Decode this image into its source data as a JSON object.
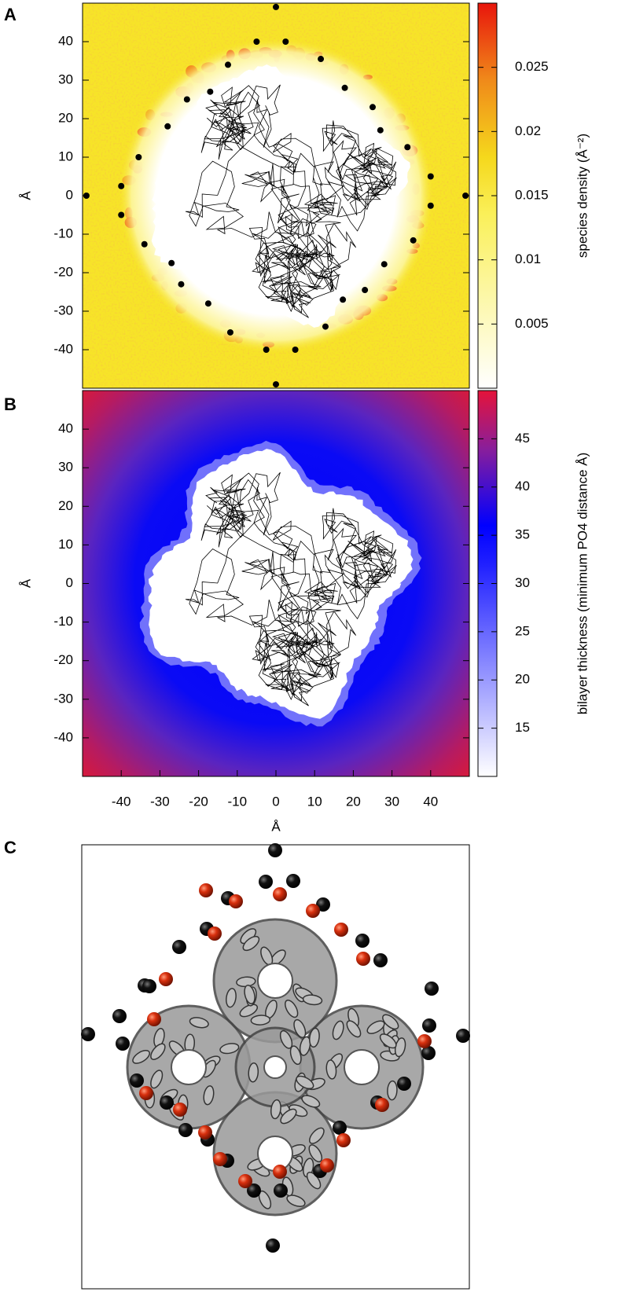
{
  "panel_labels": [
    "A",
    "B",
    "C"
  ],
  "chart_data": [
    {
      "type": "heatmap",
      "y_label": "Å",
      "xlim": [
        -50,
        50
      ],
      "ylim": [
        -50,
        50
      ],
      "yticks": [
        -40,
        -30,
        -20,
        -10,
        0,
        10,
        20,
        30,
        40
      ],
      "colorbar": {
        "label": "species density (Å⁻²)",
        "lim": [
          0,
          0.03
        ],
        "ticks": [
          0.005,
          0.01,
          0.015,
          0.02,
          0.025
        ]
      },
      "points": {
        "color": "#000000",
        "x": [
          0,
          -5,
          2.5,
          11.6,
          -12.4,
          17.8,
          -17,
          -23,
          25,
          -28,
          27,
          -35.5,
          34,
          40,
          -40,
          -49,
          49,
          40,
          -40,
          -34,
          35.5,
          -27,
          28,
          23,
          -24.5,
          -17.5,
          17.3,
          -11.8,
          12.8,
          -2.5,
          5,
          0
        ],
        "y": [
          49,
          40,
          40,
          35.5,
          34,
          28,
          27,
          25,
          23,
          18,
          17,
          10,
          12.6,
          5,
          2.5,
          0,
          0,
          -2.6,
          -5,
          -12.6,
          -11.6,
          -17.5,
          -17.8,
          -24.5,
          -23,
          -28,
          -27,
          -35.5,
          -34,
          -40,
          -40,
          -49
        ]
      }
    },
    {
      "type": "heatmap",
      "x_label": "Å",
      "y_label": "Å",
      "xlim": [
        -50,
        50
      ],
      "ylim": [
        -50,
        50
      ],
      "xticks": [
        -40,
        -30,
        -20,
        -10,
        0,
        10,
        20,
        30,
        40
      ],
      "yticks": [
        -40,
        -30,
        -20,
        -10,
        0,
        10,
        20,
        30,
        40
      ],
      "colorbar": {
        "label": "bilayer thickness (minimum PO4 distance Å)",
        "lim": [
          10,
          50
        ],
        "ticks": [
          15,
          20,
          25,
          30,
          35,
          40,
          45
        ]
      }
    }
  ]
}
